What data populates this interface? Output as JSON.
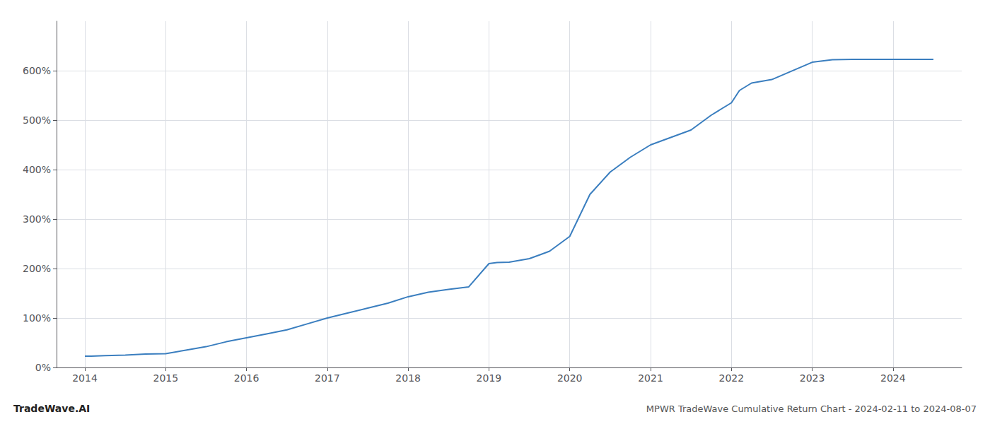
{
  "chart_data": {
    "type": "line",
    "title": "MPWR TradeWave Cumulative Return Chart - 2024-02-11 to 2024-08-07",
    "annotations": [
      "TradeWave.AI"
    ],
    "color": "#3a7ebf",
    "x": [
      2014.0,
      2014.08,
      2014.25,
      2014.5,
      2014.75,
      2015.0,
      2015.25,
      2015.5,
      2015.75,
      2016.0,
      2016.25,
      2016.5,
      2016.75,
      2017.0,
      2017.25,
      2017.5,
      2017.75,
      2018.0,
      2018.25,
      2018.5,
      2018.75,
      2019.0,
      2019.1,
      2019.25,
      2019.5,
      2019.75,
      2020.0,
      2020.25,
      2020.5,
      2020.75,
      2021.0,
      2021.25,
      2021.5,
      2021.75,
      2022.0,
      2022.1,
      2022.25,
      2022.5,
      2023.0,
      2023.25,
      2023.5,
      2023.75,
      2024.0,
      2024.5
    ],
    "values": [
      23,
      23,
      24,
      25,
      27,
      28,
      35,
      42,
      52,
      60,
      68,
      76,
      88,
      100,
      110,
      120,
      130,
      143,
      152,
      158,
      163,
      210,
      212,
      213,
      220,
      235,
      265,
      350,
      395,
      425,
      450,
      465,
      480,
      510,
      535,
      560,
      575,
      582,
      617,
      622,
      623,
      623,
      623,
      623
    ],
    "xlim": [
      2013.65,
      2024.85
    ],
    "xticks": [
      2014,
      2015,
      2016,
      2017,
      2018,
      2019,
      2020,
      2021,
      2022,
      2023,
      2024
    ],
    "ylim": [
      0,
      700
    ],
    "yticks": [
      {
        "value": 0,
        "label": "0%"
      },
      {
        "value": 100,
        "label": "100%"
      },
      {
        "value": 200,
        "label": "200%"
      },
      {
        "value": 300,
        "label": "300%"
      },
      {
        "value": 400,
        "label": "400%"
      },
      {
        "value": 500,
        "label": "500%"
      },
      {
        "value": 600,
        "label": "600%"
      }
    ],
    "grid": true
  }
}
